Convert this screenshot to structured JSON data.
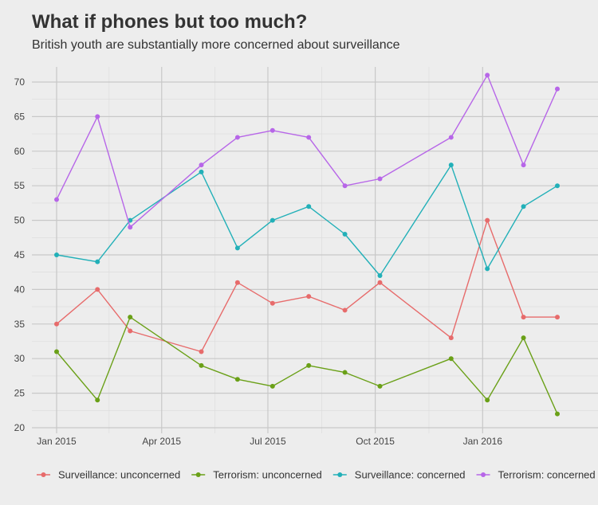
{
  "chart_data": {
    "type": "line",
    "title": "What if phones but too much?",
    "subtitle": "British youth are substantially more concerned about surveillance",
    "xlabel": "",
    "ylabel": "",
    "x": [
      "2015-01-01",
      "2015-02-05",
      "2015-03-05",
      "2015-05-05",
      "2015-06-05",
      "2015-07-05",
      "2015-08-05",
      "2015-09-05",
      "2015-10-05",
      "2015-12-05",
      "2016-01-05",
      "2016-02-05",
      "2016-03-05"
    ],
    "x_ticks": [
      {
        "date": "2015-01-01",
        "label": "Jan 2015"
      },
      {
        "date": "2015-04-01",
        "label": "Apr 2015"
      },
      {
        "date": "2015-07-01",
        "label": "Jul 2015"
      },
      {
        "date": "2015-10-01",
        "label": "Oct 2015"
      },
      {
        "date": "2016-01-01",
        "label": "Jan 2016"
      }
    ],
    "y_ticks": [
      20,
      25,
      30,
      35,
      40,
      45,
      50,
      55,
      60,
      65,
      70
    ],
    "ylim": [
      20,
      72
    ],
    "grid": true,
    "legend_position": "bottom",
    "series": [
      {
        "name": "Surveillance: unconcerned",
        "color": "#e76b6b",
        "values": [
          35,
          40,
          34,
          31,
          41,
          38,
          39,
          37,
          41,
          33,
          50,
          36,
          36
        ]
      },
      {
        "name": "Terrorism: unconcerned",
        "color": "#6aa017",
        "values": [
          31,
          24,
          36,
          29,
          27,
          26,
          29,
          28,
          26,
          30,
          24,
          33,
          22
        ]
      },
      {
        "name": "Surveillance: concerned",
        "color": "#22b0b8",
        "values": [
          45,
          44,
          50,
          57,
          46,
          50,
          52,
          48,
          42,
          58,
          43,
          52,
          55
        ]
      },
      {
        "name": "Terrorism: concerned",
        "color": "#b766e8",
        "values": [
          53,
          65,
          49,
          58,
          62,
          63,
          62,
          55,
          56,
          62,
          71,
          58,
          69
        ]
      }
    ]
  }
}
